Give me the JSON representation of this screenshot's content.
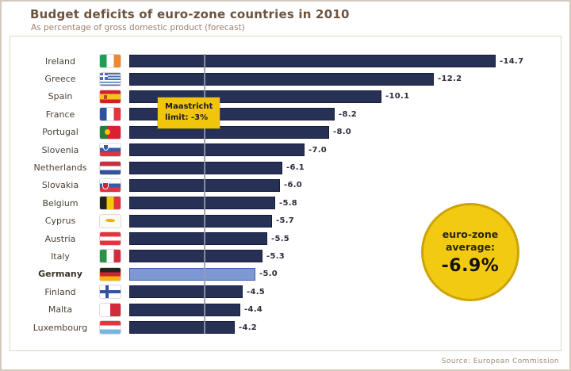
{
  "header": {
    "title": "Budget deficits of euro-zone countries in 2010",
    "subtitle": "As percentage of gross domestic product (forecast)"
  },
  "chart_data": {
    "type": "bar",
    "orientation": "horizontal",
    "unit": "percent of GDP",
    "value_axis": {
      "min": 0,
      "max": -15,
      "gridlines": false
    },
    "reference_line": {
      "value": -3,
      "label": "Maastricht limit: -3%"
    },
    "rows": [
      {
        "country": "Ireland",
        "flag": "ireland",
        "value": -14.7,
        "value_label": "-14.7",
        "highlight": false
      },
      {
        "country": "Greece",
        "flag": "greece",
        "value": -12.2,
        "value_label": "-12.2",
        "highlight": false
      },
      {
        "country": "Spain",
        "flag": "spain",
        "value": -10.1,
        "value_label": "-10.1",
        "highlight": false
      },
      {
        "country": "France",
        "flag": "france",
        "value": -8.2,
        "value_label": "-8.2",
        "highlight": false
      },
      {
        "country": "Portugal",
        "flag": "portugal",
        "value": -8.0,
        "value_label": "-8.0",
        "highlight": false
      },
      {
        "country": "Slovenia",
        "flag": "slovenia",
        "value": -7.0,
        "value_label": "-7.0",
        "highlight": false
      },
      {
        "country": "Netherlands",
        "flag": "netherlands",
        "value": -6.1,
        "value_label": "-6.1",
        "highlight": false
      },
      {
        "country": "Slovakia",
        "flag": "slovakia",
        "value": -6.0,
        "value_label": "-6.0",
        "highlight": false
      },
      {
        "country": "Belgium",
        "flag": "belgium",
        "value": -5.8,
        "value_label": "-5.8",
        "highlight": false
      },
      {
        "country": "Cyprus",
        "flag": "cyprus",
        "value": -5.7,
        "value_label": "-5.7",
        "highlight": false
      },
      {
        "country": "Austria",
        "flag": "austria",
        "value": -5.5,
        "value_label": "-5.5",
        "highlight": false
      },
      {
        "country": "Italy",
        "flag": "italy",
        "value": -5.3,
        "value_label": "-5.3",
        "highlight": false
      },
      {
        "country": "Germany",
        "flag": "germany",
        "value": -5.0,
        "value_label": "-5.0",
        "highlight": true
      },
      {
        "country": "Finland",
        "flag": "finland",
        "value": -4.5,
        "value_label": "-4.5",
        "highlight": false
      },
      {
        "country": "Malta",
        "flag": "malta",
        "value": -4.4,
        "value_label": "-4.4",
        "highlight": false
      },
      {
        "country": "Luxembourg",
        "flag": "luxembourg",
        "value": -4.2,
        "value_label": "-4.2",
        "highlight": false
      }
    ],
    "colors": {
      "bar": "#273156",
      "highlight_bar": "#7e98d4",
      "accent_yellow": "#f2c50d",
      "title_brown": "#6b543f"
    },
    "annotations": {
      "maastricht_callout": "Maastricht\nlimit: -3%",
      "average_badge": {
        "line1": "euro-zone",
        "line2": "average:",
        "value": "-6.9%"
      }
    }
  },
  "footer": {
    "source": "Source: European Commission"
  }
}
